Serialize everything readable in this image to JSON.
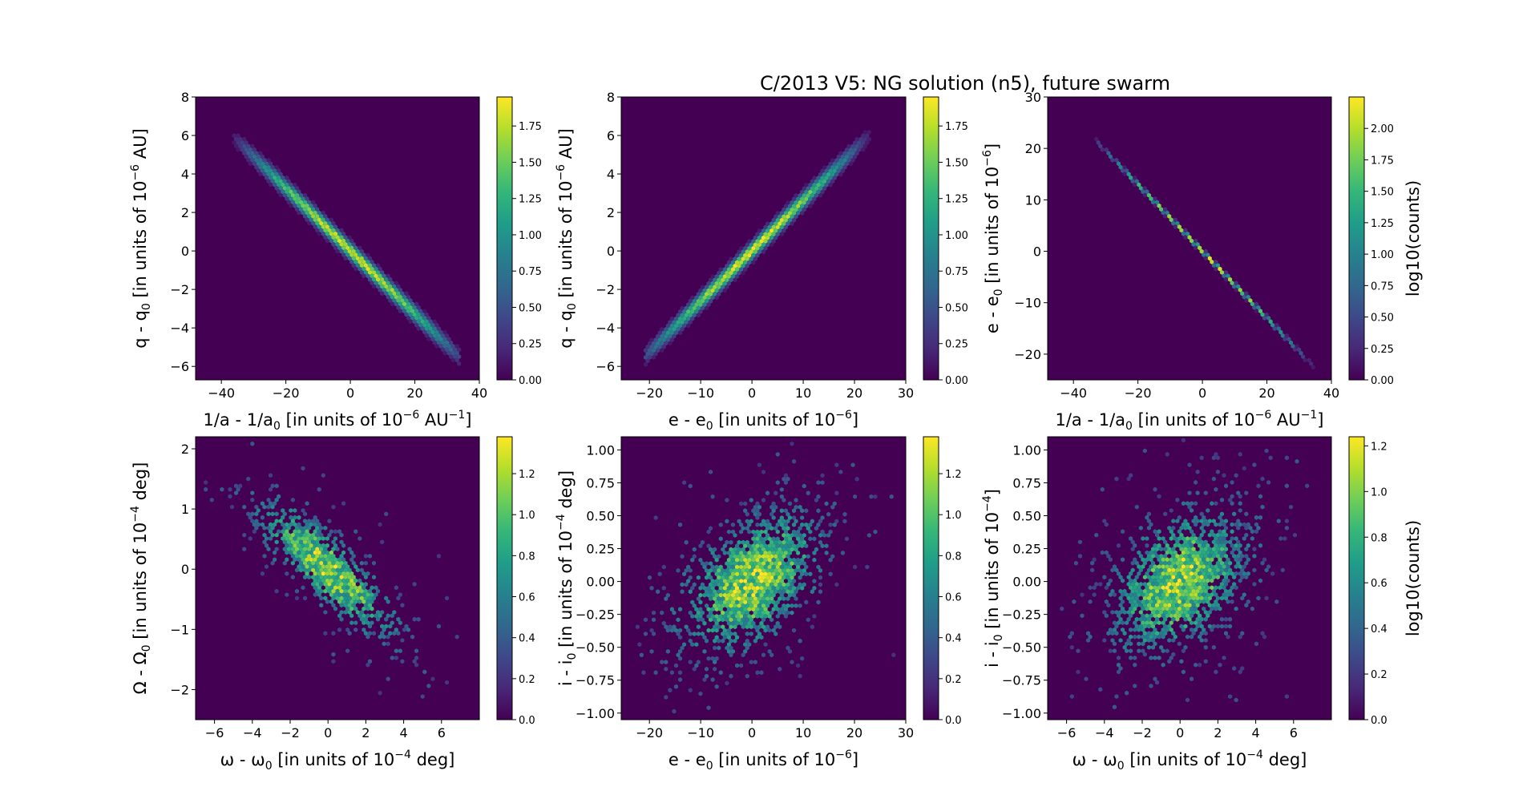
{
  "figure": {
    "title": "C/2013 V5: NG solution (n5), future swarm"
  },
  "colormap": [
    "#440154",
    "#482878",
    "#3e4989",
    "#31688e",
    "#26828e",
    "#1f9e89",
    "#35b779",
    "#6ece58",
    "#b5de2b",
    "#fde725"
  ],
  "chart_data": [
    {
      "type": "heatmap",
      "kind": "hexbin",
      "shape": "linear",
      "xlabel_main": "1/a - 1/a",
      "xlabel_sub": "0",
      "xlabel_rest": " [in units of 10",
      "xlabel_sup": "−6",
      "xlabel_unit": " AU",
      "xlabel_unitsup": "−1",
      "xlabel_end": "]",
      "ylabel_main": "q - q",
      "ylabel_sub": "0",
      "ylabel_rest": " [in units of 10",
      "ylabel_sup": "−6",
      "ylabel_end": " AU]",
      "xlim": [
        -48,
        40
      ],
      "ylim": [
        -6.7,
        8
      ],
      "xticks": [
        -40,
        -20,
        0,
        20,
        40
      ],
      "xtick_labels": [
        "−40",
        "−20",
        "0",
        "20",
        "40"
      ],
      "yticks": [
        -6,
        -4,
        -2,
        0,
        2,
        4,
        6,
        8
      ],
      "ytick_labels": [
        "−6",
        "−4",
        "−2",
        "0",
        "2",
        "4",
        "6",
        "8"
      ],
      "line": {
        "x_range": [
          -38,
          34
        ],
        "slope": -0.163,
        "intercept": 0.0,
        "width_frac": 0.02
      },
      "clim": [
        0,
        1.95
      ],
      "cbar_ticks": [
        0,
        0.25,
        0.5,
        0.75,
        1.0,
        1.25,
        1.5,
        1.75
      ],
      "cbar_labels": [
        "0.00",
        "0.25",
        "0.50",
        "0.75",
        "1.00",
        "1.25",
        "1.50",
        "1.75"
      ],
      "cbar_label": ""
    },
    {
      "type": "heatmap",
      "kind": "hexbin",
      "shape": "linear",
      "xlabel_main": "e - e",
      "xlabel_sub": "0",
      "xlabel_rest": " [in units of 10",
      "xlabel_sup": "−6",
      "xlabel_unit": "",
      "xlabel_unitsup": "",
      "xlabel_end": "]",
      "ylabel_main": "q - q",
      "ylabel_sub": "0",
      "ylabel_rest": " [in units of 10",
      "ylabel_sup": "−6",
      "ylabel_end": " AU]",
      "xlim": [
        -25.5,
        30
      ],
      "ylim": [
        -6.7,
        8
      ],
      "xticks": [
        -20,
        -10,
        0,
        10,
        20,
        30
      ],
      "xtick_labels": [
        "−20",
        "−10",
        "0",
        "10",
        "20",
        "30"
      ],
      "yticks": [
        -6,
        -4,
        -2,
        0,
        2,
        4,
        6,
        8
      ],
      "ytick_labels": [
        "−6",
        "−4",
        "−2",
        "0",
        "2",
        "4",
        "6",
        "8"
      ],
      "line": {
        "x_range": [
          -21,
          24
        ],
        "slope": 0.262,
        "intercept": 0.0,
        "width_frac": 0.02
      },
      "clim": [
        0,
        1.95
      ],
      "cbar_ticks": [
        0,
        0.25,
        0.5,
        0.75,
        1.0,
        1.25,
        1.5,
        1.75
      ],
      "cbar_labels": [
        "0.00",
        "0.25",
        "0.50",
        "0.75",
        "1.00",
        "1.25",
        "1.50",
        "1.75"
      ],
      "cbar_label": ""
    },
    {
      "type": "heatmap",
      "kind": "hexbin",
      "shape": "linear",
      "xlabel_main": "1/a - 1/a",
      "xlabel_sub": "0",
      "xlabel_rest": " [in units of 10",
      "xlabel_sup": "−6",
      "xlabel_unit": " AU",
      "xlabel_unitsup": "−1",
      "xlabel_end": "]",
      "ylabel_main": "e - e",
      "ylabel_sub": "0",
      "ylabel_rest": " [in units of 10",
      "ylabel_sup": "−6",
      "ylabel_end": "]",
      "xlim": [
        -48,
        40
      ],
      "ylim": [
        -25,
        30
      ],
      "xticks": [
        -40,
        -20,
        0,
        20,
        40
      ],
      "xtick_labels": [
        "−40",
        "−20",
        "0",
        "20",
        "40"
      ],
      "yticks": [
        -20,
        -10,
        0,
        10,
        20,
        30
      ],
      "ytick_labels": [
        "−20",
        "−10",
        "0",
        "10",
        "20",
        "30"
      ],
      "line": {
        "x_range": [
          -33,
          36
        ],
        "slope": -0.65,
        "intercept": 0.0,
        "width_frac": 0.006
      },
      "clim": [
        0,
        2.25
      ],
      "cbar_ticks": [
        0,
        0.25,
        0.5,
        0.75,
        1.0,
        1.25,
        1.5,
        1.75,
        2.0
      ],
      "cbar_labels": [
        "0.00",
        "0.25",
        "0.50",
        "0.75",
        "1.00",
        "1.25",
        "1.50",
        "1.75",
        "2.00"
      ],
      "cbar_label": "log10(counts)"
    },
    {
      "type": "heatmap",
      "kind": "hexbin",
      "shape": "cloud",
      "xlabel_main": "ω - ω",
      "xlabel_sub": "0",
      "xlabel_rest": " [in units of 10",
      "xlabel_sup": "−4",
      "xlabel_unit": "",
      "xlabel_unitsup": "",
      "xlabel_end": " deg]",
      "ylabel_main": "Ω - Ω",
      "ylabel_sub": "0",
      "ylabel_rest": " [in units of 10",
      "ylabel_sup": "−4",
      "ylabel_end": " deg]",
      "xlim": [
        -7,
        8
      ],
      "ylim": [
        -2.5,
        2.2
      ],
      "xticks": [
        -6,
        -4,
        -2,
        0,
        2,
        4,
        6
      ],
      "xtick_labels": [
        "−6",
        "−4",
        "−2",
        "0",
        "2",
        "4",
        "6"
      ],
      "yticks": [
        -2,
        -1,
        0,
        1,
        2
      ],
      "ytick_labels": [
        "−2",
        "−1",
        "0",
        "1",
        "2"
      ],
      "cloud": {
        "center": [
          0,
          0
        ],
        "sx": 2.1,
        "sy": 0.65,
        "rho": -0.82,
        "range_x": [
          -7,
          7
        ],
        "range_y": [
          -2.3,
          2.1
        ]
      },
      "clim": [
        0,
        1.38
      ],
      "cbar_ticks": [
        0,
        0.2,
        0.4,
        0.6,
        0.8,
        1.0,
        1.2
      ],
      "cbar_labels": [
        "0.0",
        "0.2",
        "0.4",
        "0.6",
        "0.8",
        "1.0",
        "1.2"
      ],
      "cbar_label": ""
    },
    {
      "type": "heatmap",
      "kind": "hexbin",
      "shape": "cloud",
      "xlabel_main": "e - e",
      "xlabel_sub": "0",
      "xlabel_rest": " [in units of 10",
      "xlabel_sup": "−6",
      "xlabel_unit": "",
      "xlabel_unitsup": "",
      "xlabel_end": "]",
      "ylabel_main": "i - i",
      "ylabel_sub": "0",
      "ylabel_rest": " [in units of 10",
      "ylabel_sup": "−4",
      "ylabel_end": " deg]",
      "xlim": [
        -25.5,
        30
      ],
      "ylim": [
        -1.05,
        1.1
      ],
      "xticks": [
        -20,
        -10,
        0,
        10,
        20,
        30
      ],
      "xtick_labels": [
        "−20",
        "−10",
        "0",
        "10",
        "20",
        "30"
      ],
      "yticks": [
        -1.0,
        -0.75,
        -0.5,
        -0.25,
        0,
        0.25,
        0.5,
        0.75,
        1.0
      ],
      "ytick_labels": [
        "−1.00",
        "−0.75",
        "−0.50",
        "−0.25",
        "0.00",
        "0.25",
        "0.50",
        "0.75",
        "1.00"
      ],
      "cloud": {
        "center": [
          0,
          0
        ],
        "sx": 8.0,
        "sy": 0.32,
        "rho": 0.45,
        "range_x": [
          -24,
          29
        ],
        "range_y": [
          -1.0,
          1.08
        ]
      },
      "clim": [
        0,
        1.38
      ],
      "cbar_ticks": [
        0,
        0.2,
        0.4,
        0.6,
        0.8,
        1.0,
        1.2
      ],
      "cbar_labels": [
        "0.0",
        "0.2",
        "0.4",
        "0.6",
        "0.8",
        "1.0",
        "1.2"
      ],
      "cbar_label": ""
    },
    {
      "type": "heatmap",
      "kind": "hexbin",
      "shape": "cloud",
      "xlabel_main": "ω - ω",
      "xlabel_sub": "0",
      "xlabel_rest": " [in units of 10",
      "xlabel_sup": "−4",
      "xlabel_unit": "",
      "xlabel_unitsup": "",
      "xlabel_end": " deg]",
      "ylabel_main": "i - i",
      "ylabel_sub": "0",
      "ylabel_rest": " [in units of 10",
      "ylabel_sup": "−4",
      "ylabel_end": "]",
      "xlim": [
        -7,
        8
      ],
      "ylim": [
        -1.05,
        1.1
      ],
      "xticks": [
        -6,
        -4,
        -2,
        0,
        2,
        4,
        6
      ],
      "xtick_labels": [
        "−6",
        "−4",
        "−2",
        "0",
        "2",
        "4",
        "6"
      ],
      "yticks": [
        -1.0,
        -0.75,
        -0.5,
        -0.25,
        0,
        0.25,
        0.5,
        0.75,
        1.0
      ],
      "ytick_labels": [
        "−1.00",
        "−0.75",
        "−0.50",
        "−0.25",
        "0.00",
        "0.25",
        "0.50",
        "0.75",
        "1.00"
      ],
      "cloud": {
        "center": [
          0,
          0
        ],
        "sx": 2.1,
        "sy": 0.32,
        "rho": 0.4,
        "range_x": [
          -6.5,
          7.5
        ],
        "range_y": [
          -1.0,
          1.08
        ]
      },
      "clim": [
        0,
        1.24
      ],
      "cbar_ticks": [
        0,
        0.2,
        0.4,
        0.6,
        0.8,
        1.0,
        1.2
      ],
      "cbar_labels": [
        "0.0",
        "0.2",
        "0.4",
        "0.6",
        "0.8",
        "1.0",
        "1.2"
      ],
      "cbar_label": "log10(counts)"
    }
  ]
}
